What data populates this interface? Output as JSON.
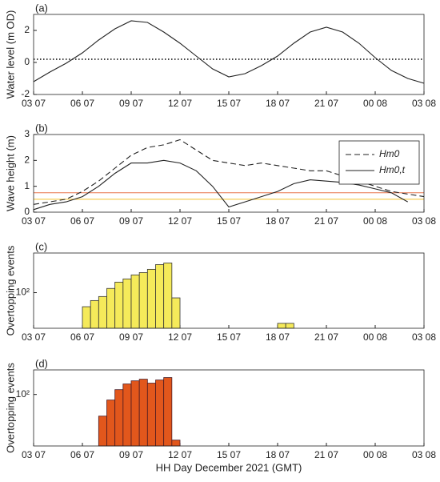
{
  "chart_data": [
    {
      "type": "line",
      "title": "(a)",
      "ylabel": "Water level (m OD)",
      "xlim": [
        0,
        24
      ],
      "xticks": [
        {
          "value": 0,
          "label": "03 07"
        },
        {
          "value": 3,
          "label": "06 07"
        },
        {
          "value": 6,
          "label": "09 07"
        },
        {
          "value": 9,
          "label": "12 07"
        },
        {
          "value": 12,
          "label": "15 07"
        },
        {
          "value": 15,
          "label": "18 07"
        },
        {
          "value": 18,
          "label": "21 07"
        },
        {
          "value": 21,
          "label": "00 08"
        },
        {
          "value": 24,
          "label": "03 08"
        }
      ],
      "ylim": [
        -2,
        3
      ],
      "yticks": [
        -2,
        0,
        2
      ],
      "reference_lines": [
        {
          "value": 0.2,
          "color": "#000000",
          "style": "dotted"
        }
      ],
      "x": [
        0,
        1,
        2,
        3,
        4,
        5,
        6,
        7,
        8,
        9,
        10,
        11,
        12,
        13,
        14,
        15,
        16,
        17,
        18,
        19,
        20,
        21,
        22,
        23,
        24
      ],
      "series": [
        {
          "color": "#222222",
          "dash": "solid",
          "values": [
            -1.2,
            -0.6,
            -0.05,
            0.6,
            1.4,
            2.1,
            2.6,
            2.5,
            1.9,
            1.2,
            0.4,
            -0.4,
            -0.9,
            -0.7,
            -0.2,
            0.4,
            1.2,
            1.9,
            2.2,
            1.9,
            1.2,
            0.3,
            -0.5,
            -1.0,
            -1.3
          ]
        }
      ]
    },
    {
      "type": "line",
      "title": "(b)",
      "ylabel": "Wave height (m)",
      "xlim": [
        0,
        24
      ],
      "xticks": [
        {
          "value": 0,
          "label": "03 07"
        },
        {
          "value": 3,
          "label": "06 07"
        },
        {
          "value": 6,
          "label": "09 07"
        },
        {
          "value": 9,
          "label": "12 07"
        },
        {
          "value": 12,
          "label": "15 07"
        },
        {
          "value": 15,
          "label": "18 07"
        },
        {
          "value": 18,
          "label": "21 07"
        },
        {
          "value": 21,
          "label": "00 08"
        },
        {
          "value": 24,
          "label": "03 08"
        }
      ],
      "ylim": [
        0,
        3
      ],
      "yticks": [
        0,
        1,
        2,
        3
      ],
      "legend": "upper right",
      "reference_lines": [
        {
          "value": 0.75,
          "color": "#e8734a",
          "style": "solid"
        },
        {
          "value": 0.5,
          "color": "#f2c12e",
          "style": "solid"
        }
      ],
      "x": [
        0,
        1,
        2,
        3,
        4,
        5,
        6,
        7,
        8,
        9,
        10,
        11,
        12,
        13,
        14,
        15,
        16,
        17,
        18,
        19,
        20,
        21,
        22,
        23,
        24
      ],
      "series": [
        {
          "name": "Hm0",
          "color": "#222222",
          "dash": "dashed",
          "values": [
            0.3,
            0.4,
            0.5,
            0.8,
            1.2,
            1.7,
            2.2,
            2.5,
            2.6,
            2.8,
            2.4,
            2.0,
            1.9,
            1.8,
            1.9,
            1.8,
            1.7,
            1.6,
            1.6,
            1.4,
            1.2,
            1.0,
            0.8,
            0.7,
            0.6
          ]
        },
        {
          "name": "Hm0,t",
          "color": "#222222",
          "dash": "solid",
          "values": [
            0.1,
            0.3,
            0.4,
            0.6,
            1.0,
            1.5,
            1.9,
            1.9,
            2.0,
            1.9,
            1.6,
            1.0,
            0.2,
            0.4,
            0.6,
            0.8,
            1.1,
            1.25,
            1.2,
            1.15,
            1.05,
            0.9,
            0.75,
            0.4,
            null
          ]
        }
      ]
    },
    {
      "type": "histogram",
      "title": "(c)",
      "ylabel": "Overtopping events",
      "log_y": true,
      "xlim": [
        0,
        24
      ],
      "xticks": [
        {
          "value": 0,
          "label": "03 07"
        },
        {
          "value": 3,
          "label": "06 07"
        },
        {
          "value": 6,
          "label": "09 07"
        },
        {
          "value": 9,
          "label": "12 07"
        },
        {
          "value": 12,
          "label": "15 07"
        },
        {
          "value": 15,
          "label": "18 07"
        },
        {
          "value": 18,
          "label": "21 07"
        },
        {
          "value": 21,
          "label": "00 08"
        },
        {
          "value": 24,
          "label": "03 08"
        }
      ],
      "ylim": [
        20,
        600
      ],
      "yticks": [
        {
          "value": 100,
          "label": "10²"
        }
      ],
      "color": "#f5ea5a",
      "edge_color": "#333333",
      "bins": [
        3,
        3.5,
        4,
        4.5,
        5,
        5.5,
        6,
        6.5,
        7,
        7.5,
        8,
        8.5,
        9,
        9.5,
        10,
        10.5,
        11,
        11.5,
        12,
        12.5,
        13,
        13.5,
        14,
        14.5,
        15,
        15.5,
        16
      ],
      "counts": [
        53,
        70,
        84,
        121,
        161,
        186,
        223,
        248,
        287,
        356,
        382,
        79,
        null,
        null,
        null,
        null,
        null,
        null,
        null,
        null,
        null,
        null,
        null,
        null,
        25,
        25
      ]
    },
    {
      "type": "histogram",
      "title": "(d)",
      "ylabel": "Overtopping events",
      "xlabel": "HH Day December 2021 (GMT)",
      "log_y": true,
      "xlim": [
        0,
        24
      ],
      "xticks": [
        {
          "value": 0,
          "label": "03 07"
        },
        {
          "value": 3,
          "label": "06 07"
        },
        {
          "value": 6,
          "label": "09 07"
        },
        {
          "value": 9,
          "label": "12 07"
        },
        {
          "value": 12,
          "label": "15 07"
        },
        {
          "value": 15,
          "label": "18 07"
        },
        {
          "value": 18,
          "label": "21 07"
        },
        {
          "value": 21,
          "label": "00 08"
        },
        {
          "value": 24,
          "label": "03 08"
        }
      ],
      "ylim": [
        10,
        300
      ],
      "yticks": [
        {
          "value": 100,
          "label": "10²"
        }
      ],
      "color": "#e2571c",
      "edge_color": "#4a1a22",
      "bins": [
        4,
        4.5,
        5,
        5.5,
        6,
        6.5,
        7,
        7.5,
        8,
        8.5,
        9
      ],
      "counts": [
        38,
        78,
        124,
        160,
        184,
        198,
        166,
        191,
        213,
        13
      ]
    }
  ]
}
